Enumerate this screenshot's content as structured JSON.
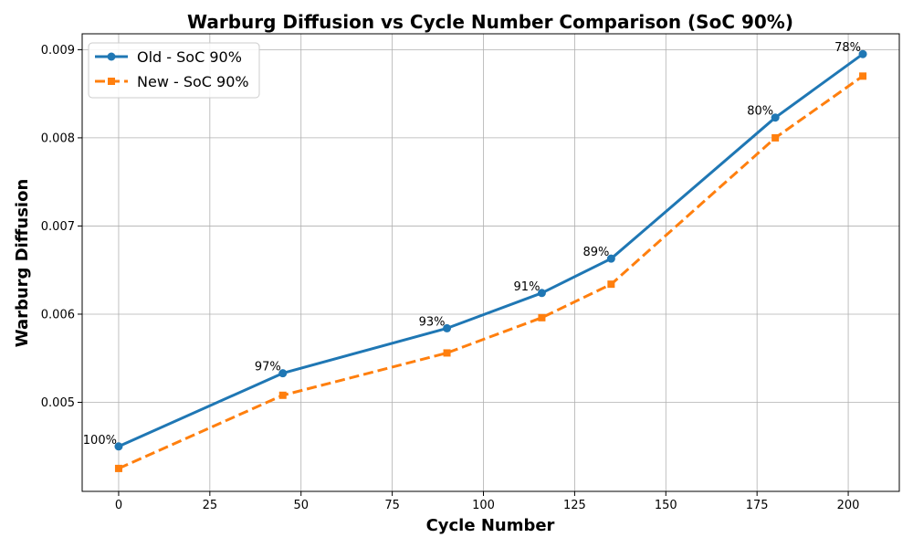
{
  "chart_data": {
    "type": "line",
    "title": "Warburg Diffusion vs Cycle Number Comparison (SoC 90%)",
    "xlabel": "Cycle Number",
    "ylabel": "Warburg Diffusion",
    "xlim": [
      -10,
      214
    ],
    "ylim": [
      0.00399,
      0.00918
    ],
    "xticks": [
      0,
      25,
      50,
      75,
      100,
      125,
      150,
      175,
      200
    ],
    "yticks": [
      0.005,
      0.006,
      0.007,
      0.008,
      0.009
    ],
    "xtick_labels": [
      "0",
      "25",
      "50",
      "75",
      "100",
      "125",
      "150",
      "175",
      "200"
    ],
    "ytick_labels": [
      "0.005",
      "0.006",
      "0.007",
      "0.008",
      "0.009"
    ],
    "grid": true,
    "legend_position": "upper-left",
    "series": [
      {
        "name": "Old - SoC 90%",
        "color": "#1f77b4",
        "line_style": "solid",
        "marker": "circle",
        "x": [
          0,
          45,
          90,
          116,
          135,
          180,
          204
        ],
        "y": [
          0.0045,
          0.00533,
          0.00584,
          0.00624,
          0.00663,
          0.00823,
          0.00895
        ]
      },
      {
        "name": "New - SoC 90%",
        "color": "#ff7f0e",
        "line_style": "dashed",
        "marker": "square",
        "x": [
          0,
          45,
          90,
          116,
          135,
          180,
          204
        ],
        "y": [
          0.00425,
          0.00508,
          0.00556,
          0.00596,
          0.00634,
          0.008,
          0.0087
        ]
      }
    ],
    "annotations": [
      {
        "x": 0,
        "y": 0.0045,
        "text": "100%"
      },
      {
        "x": 45,
        "y": 0.00533,
        "text": "97%"
      },
      {
        "x": 90,
        "y": 0.00584,
        "text": "93%"
      },
      {
        "x": 116,
        "y": 0.00624,
        "text": "91%"
      },
      {
        "x": 135,
        "y": 0.00663,
        "text": "89%"
      },
      {
        "x": 180,
        "y": 0.00823,
        "text": "80%"
      },
      {
        "x": 204,
        "y": 0.00895,
        "text": "78%"
      }
    ]
  }
}
